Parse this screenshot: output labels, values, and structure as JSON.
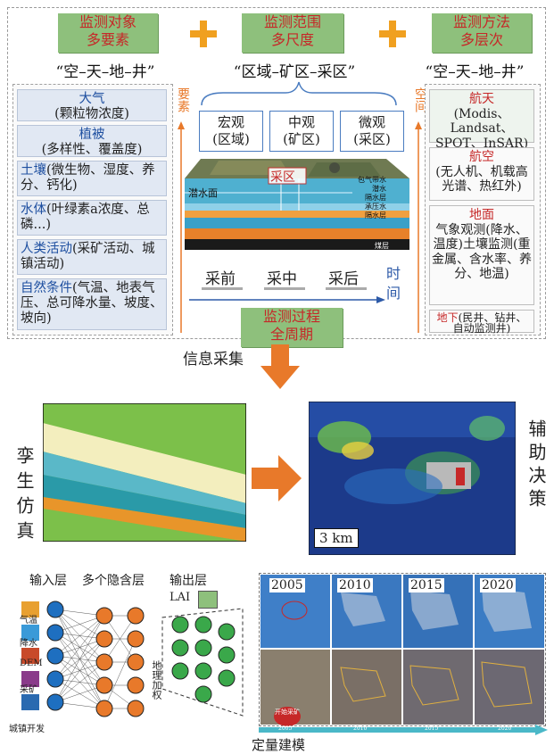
{
  "top": {
    "target_box": {
      "line1": "监测对象",
      "line2": "多要素"
    },
    "range_box": {
      "line1": "监测范围",
      "line2": "多尺度"
    },
    "method_box": {
      "line1": "监测方法",
      "line2": "多层次"
    },
    "left_quote": "“空–天–地–井”",
    "center_quote": "“区域–矿区–采区”",
    "right_quote": "“空–天–地–井”",
    "left_side_label": "要素",
    "right_side_label": "空间"
  },
  "elements": [
    {
      "title": "大气",
      "desc": "(颗粒物浓度)"
    },
    {
      "title": "植被",
      "desc": "(多样性、覆盖度)"
    },
    {
      "title": "土壤",
      "desc": "(微生物、湿度、养分、钙化)"
    },
    {
      "title": "水体",
      "desc": "(叶绿素a浓度、总磷...)"
    },
    {
      "title": "人类活动",
      "desc": "(采矿活动、城镇活动)"
    },
    {
      "title": "自然条件",
      "desc": "(气温、地表气压、总可降水量、坡度、坡向)"
    }
  ],
  "scales": [
    {
      "line1": "宏观",
      "line2": "(区域)"
    },
    {
      "line1": "中观",
      "line2": "(矿区)"
    },
    {
      "line1": "微观",
      "line2": "(采区)"
    }
  ],
  "block": {
    "label": "采区",
    "water_table": "潜水面",
    "layers": [
      "包气带水",
      "潜水",
      "隔水层",
      "承压水",
      "隔水层",
      "煤层"
    ]
  },
  "phases": [
    "采前",
    "采中",
    "采后"
  ],
  "time_label": "时间",
  "process_box": {
    "line1": "监测过程",
    "line2": "全周期"
  },
  "methods": [
    {
      "title": "航天",
      "desc": "(Modis、Landsat、SPOT、InSAR)"
    },
    {
      "title": "航空",
      "desc": "(无人机、机载高光谱、热红外)"
    },
    {
      "title": "地面",
      "desc": "气象观测(降水、温度)土壤监测(重金属、含水率、养分、地温)"
    },
    {
      "title": "地下",
      "desc": "(民井、钻井、自动监测井)"
    }
  ],
  "info_collection": "信息采集",
  "twin_label": "孪生仿真",
  "decision_label": "辅助决策",
  "scale_bar": "3 km",
  "nn": {
    "input_layer": "输入层",
    "hidden_layers": "多个隐含层",
    "output_layer": "输出层",
    "output_name": "LAI",
    "inputs": [
      "气温",
      "降水",
      "DEM",
      "采矿",
      "城镇开发"
    ],
    "geo_weight": "地理加权"
  },
  "years": [
    "2005",
    "2010",
    "2015",
    "2020"
  ],
  "timeline_years": [
    "2005",
    "2010",
    "2015",
    "2020"
  ],
  "start_mining": "开始采矿",
  "quant_label": "定量建模",
  "colors": {
    "accent_red": "#c62828",
    "blue": "#1e4fa0",
    "green": "#8ec07c",
    "orange": "#e8792a"
  }
}
